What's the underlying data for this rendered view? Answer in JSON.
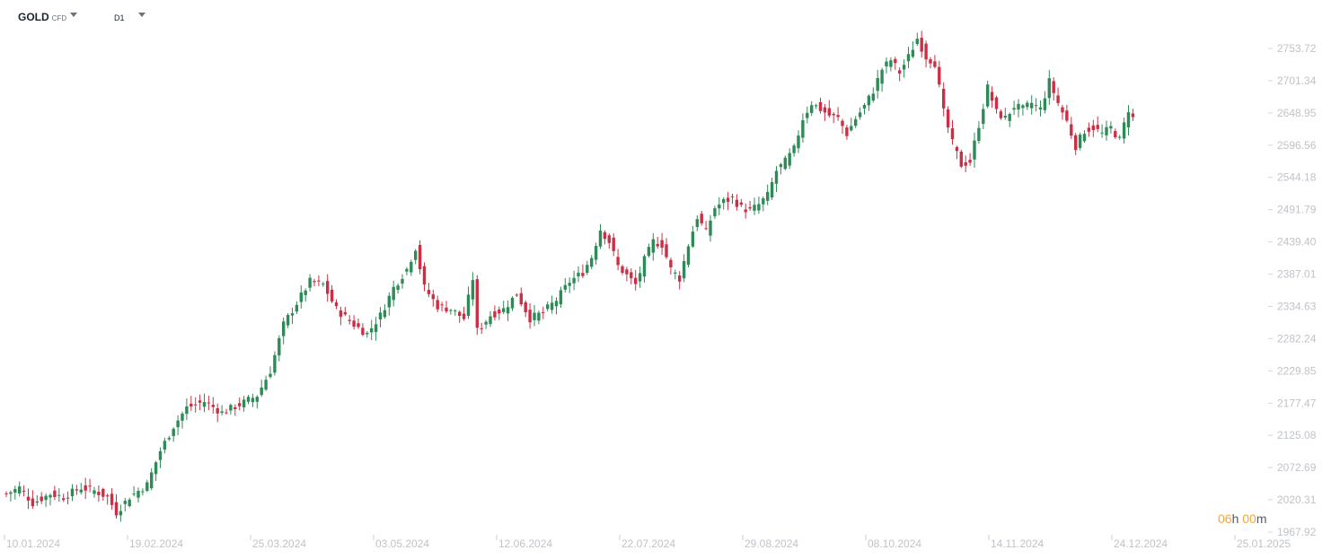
{
  "toolbar": {
    "symbol": "GOLD",
    "symbol_type": "CFD",
    "timeframe": "D1"
  },
  "timer": {
    "hours": "06",
    "h": "h",
    "minutes": "00",
    "m": "m"
  },
  "colors": {
    "up": "#2e8b57",
    "down": "#cc2f45",
    "axis_text": "#bfc3c9"
  },
  "chart_data": {
    "type": "candlestick",
    "y_ticks": [
      "2753.72",
      "2701.34",
      "2648.95",
      "2596.56",
      "2544.18",
      "2491.79",
      "2439.40",
      "2387.01",
      "2334.63",
      "2282.24",
      "2229.85",
      "2177.47",
      "2125.08",
      "2072.69",
      "2020.31",
      "1967.92"
    ],
    "ylim": [
      1967.92,
      2753.72
    ],
    "x_ticks": [
      "10.01.2024",
      "19.02.2024",
      "25.03.2024",
      "03.05.2024",
      "12.06.2024",
      "22.07.2024",
      "29.08.2024",
      "08.10.2024",
      "14.11.2024",
      "24.12.2024",
      "25.01.2025"
    ],
    "anchors": [
      [
        0,
        2030
      ],
      [
        3,
        2040
      ],
      [
        6,
        2015
      ],
      [
        10,
        2030
      ],
      [
        13,
        2025
      ],
      [
        17,
        2040
      ],
      [
        20,
        2035
      ],
      [
        23,
        2025
      ],
      [
        25,
        2000
      ],
      [
        28,
        2025
      ],
      [
        32,
        2045
      ],
      [
        35,
        2100
      ],
      [
        38,
        2140
      ],
      [
        41,
        2170
      ],
      [
        45,
        2180
      ],
      [
        49,
        2162
      ],
      [
        53,
        2175
      ],
      [
        57,
        2190
      ],
      [
        60,
        2230
      ],
      [
        63,
        2305
      ],
      [
        66,
        2340
      ],
      [
        69,
        2375
      ],
      [
        72,
        2370
      ],
      [
        75,
        2330
      ],
      [
        79,
        2305
      ],
      [
        82,
        2290
      ],
      [
        85,
        2320
      ],
      [
        88,
        2365
      ],
      [
        91,
        2395
      ],
      [
        93,
        2430
      ],
      [
        95,
        2365
      ],
      [
        98,
        2335
      ],
      [
        101,
        2330
      ],
      [
        104,
        2315
      ],
      [
        106,
        2380
      ],
      [
        107,
        2295
      ],
      [
        110,
        2320
      ],
      [
        113,
        2330
      ],
      [
        116,
        2355
      ],
      [
        119,
        2315
      ],
      [
        122,
        2325
      ],
      [
        125,
        2345
      ],
      [
        128,
        2375
      ],
      [
        131,
        2390
      ],
      [
        133,
        2415
      ],
      [
        135,
        2460
      ],
      [
        137,
        2440
      ],
      [
        139,
        2400
      ],
      [
        141,
        2385
      ],
      [
        143,
        2370
      ],
      [
        145,
        2410
      ],
      [
        147,
        2440
      ],
      [
        149,
        2435
      ],
      [
        151,
        2395
      ],
      [
        153,
        2380
      ],
      [
        155,
        2435
      ],
      [
        157,
        2480
      ],
      [
        159,
        2455
      ],
      [
        161,
        2495
      ],
      [
        163,
        2505
      ],
      [
        165,
        2510
      ],
      [
        167,
        2495
      ],
      [
        169,
        2490
      ],
      [
        171,
        2500
      ],
      [
        173,
        2515
      ],
      [
        175,
        2555
      ],
      [
        177,
        2570
      ],
      [
        179,
        2590
      ],
      [
        181,
        2640
      ],
      [
        183,
        2665
      ],
      [
        185,
        2655
      ],
      [
        187,
        2645
      ],
      [
        189,
        2640
      ],
      [
        191,
        2615
      ],
      [
        193,
        2640
      ],
      [
        195,
        2660
      ],
      [
        197,
        2685
      ],
      [
        199,
        2720
      ],
      [
        201,
        2735
      ],
      [
        203,
        2715
      ],
      [
        205,
        2740
      ],
      [
        207,
        2770
      ],
      [
        209,
        2740
      ],
      [
        211,
        2730
      ],
      [
        213,
        2650
      ],
      [
        215,
        2600
      ],
      [
        217,
        2565
      ],
      [
        219,
        2570
      ],
      [
        221,
        2630
      ],
      [
        223,
        2690
      ],
      [
        225,
        2650
      ],
      [
        227,
        2640
      ],
      [
        229,
        2660
      ],
      [
        231,
        2655
      ],
      [
        233,
        2665
      ],
      [
        235,
        2655
      ],
      [
        237,
        2700
      ],
      [
        239,
        2665
      ],
      [
        241,
        2635
      ],
      [
        243,
        2595
      ],
      [
        245,
        2620
      ],
      [
        247,
        2625
      ],
      [
        249,
        2615
      ],
      [
        251,
        2625
      ],
      [
        253,
        2605
      ],
      [
        255,
        2655
      ],
      [
        256,
        2640
      ]
    ]
  }
}
